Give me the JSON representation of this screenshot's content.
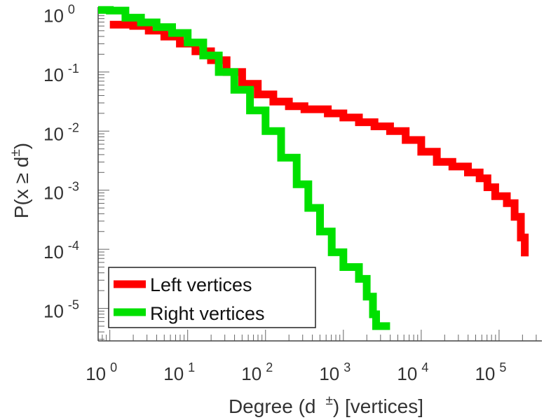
{
  "chart_data": {
    "type": "line",
    "title": "",
    "xlabel": {
      "main": "Degree (d",
      "superscript": "±",
      "suffix": ") [vertices]"
    },
    "ylabel": {
      "main": "P(x ≥ d",
      "superscript": "±",
      "suffix": ")"
    },
    "xscale": "log",
    "yscale": "log",
    "xlim_exp": [
      -0.15,
      5.55
    ],
    "ylim_exp": [
      -5.55,
      0.1
    ],
    "x_ticks": [
      {
        "base": "10",
        "exp": "0"
      },
      {
        "base": "10",
        "exp": "1"
      },
      {
        "base": "10",
        "exp": "2"
      },
      {
        "base": "10",
        "exp": "3"
      },
      {
        "base": "10",
        "exp": "4"
      },
      {
        "base": "10",
        "exp": "5"
      }
    ],
    "y_ticks": [
      {
        "base": "10",
        "exp": "0"
      },
      {
        "base": "10",
        "exp": "-1"
      },
      {
        "base": "10",
        "exp": "-2"
      },
      {
        "base": "10",
        "exp": "-3"
      },
      {
        "base": "10",
        "exp": "-4"
      },
      {
        "base": "10",
        "exp": "-5"
      }
    ],
    "legend_position": "bottom-left",
    "series": [
      {
        "name": "Left vertices",
        "color": "#ff0000",
        "points_log10": [
          [
            0,
            -0.2
          ],
          [
            0.15,
            -0.2
          ],
          [
            0.3,
            -0.22
          ],
          [
            0.5,
            -0.3
          ],
          [
            0.7,
            -0.4
          ],
          [
            0.9,
            -0.52
          ],
          [
            1.1,
            -0.65
          ],
          [
            1.3,
            -0.8
          ],
          [
            1.5,
            -1.0
          ],
          [
            1.7,
            -1.2
          ],
          [
            1.9,
            -1.38
          ],
          [
            2.1,
            -1.5
          ],
          [
            2.3,
            -1.58
          ],
          [
            2.5,
            -1.63
          ],
          [
            2.8,
            -1.7
          ],
          [
            3.0,
            -1.77
          ],
          [
            3.2,
            -1.85
          ],
          [
            3.4,
            -1.92
          ],
          [
            3.6,
            -2.0
          ],
          [
            3.8,
            -2.15
          ],
          [
            4.0,
            -2.35
          ],
          [
            4.2,
            -2.52
          ],
          [
            4.4,
            -2.6
          ],
          [
            4.6,
            -2.7
          ],
          [
            4.75,
            -2.8
          ],
          [
            4.85,
            -2.95
          ],
          [
            4.95,
            -3.1
          ],
          [
            5.1,
            -3.22
          ],
          [
            5.2,
            -3.45
          ],
          [
            5.28,
            -3.8
          ],
          [
            5.33,
            -4.12
          ]
        ]
      },
      {
        "name": "Right vertices",
        "color": "#00e000",
        "points_log10": [
          [
            -0.15,
            0.05
          ],
          [
            0,
            0.04
          ],
          [
            0.2,
            -0.08
          ],
          [
            0.4,
            -0.16
          ],
          [
            0.6,
            -0.24
          ],
          [
            0.8,
            -0.34
          ],
          [
            1.0,
            -0.5
          ],
          [
            1.2,
            -0.72
          ],
          [
            1.4,
            -1.0
          ],
          [
            1.6,
            -1.3
          ],
          [
            1.8,
            -1.65
          ],
          [
            2.0,
            -2.0
          ],
          [
            2.2,
            -2.45
          ],
          [
            2.4,
            -2.9
          ],
          [
            2.55,
            -3.3
          ],
          [
            2.7,
            -3.7
          ],
          [
            2.85,
            -4.05
          ],
          [
            3.0,
            -4.3
          ],
          [
            3.2,
            -4.5
          ],
          [
            3.3,
            -4.8
          ],
          [
            3.38,
            -5.1
          ],
          [
            3.42,
            -5.3
          ],
          [
            3.6,
            -5.3
          ]
        ]
      }
    ]
  }
}
